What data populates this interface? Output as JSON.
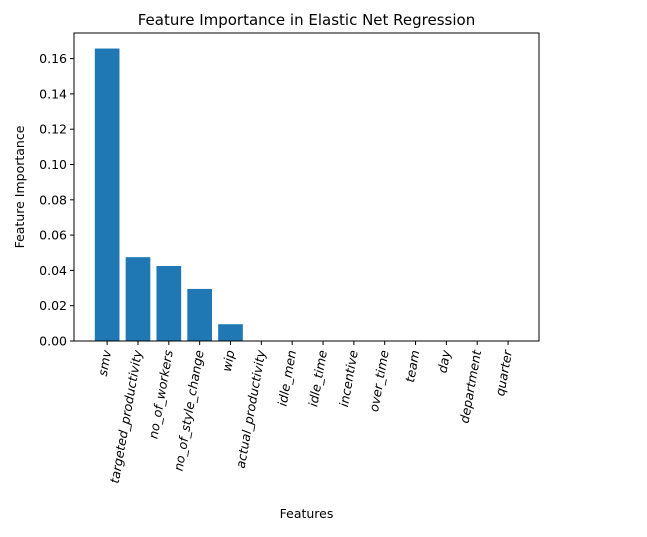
{
  "chart_data": {
    "type": "bar",
    "title": "Feature Importance in Elastic Net Regression",
    "xlabel": "Features",
    "ylabel": "Feature Importance",
    "categories": [
      "smv",
      "targeted_productivity",
      "no_of_workers",
      "no_of_style_change",
      "wip",
      "actual_productivity",
      "idle_men",
      "idle_time",
      "incentive",
      "over_time",
      "team",
      "day",
      "department",
      "quarter"
    ],
    "values": [
      0.1657,
      0.0475,
      0.0425,
      0.0295,
      0.0095,
      0,
      0,
      0,
      0,
      0,
      0,
      0,
      0,
      0
    ],
    "ylim": [
      0,
      0.1745
    ],
    "yticks": [
      "0.00",
      "0.02",
      "0.04",
      "0.06",
      "0.08",
      "0.10",
      "0.12",
      "0.14",
      "0.16"
    ],
    "grid": false,
    "legend": "none",
    "bar_color": "#1f77b4"
  }
}
